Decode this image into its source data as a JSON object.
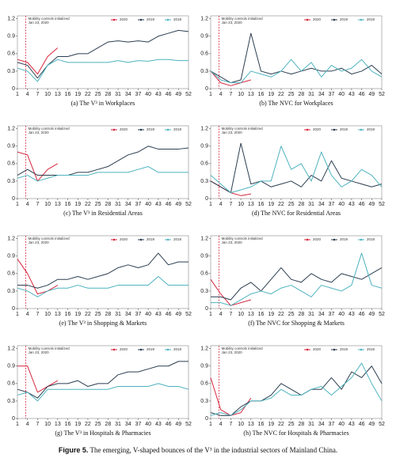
{
  "chart_data": [
    {
      "type": "line",
      "title": "(a) The V³ in Workplaces",
      "annotation": {
        "lines": [
          "Mobility controls initialized",
          "Jan 23, 2020"
        ],
        "x": 3.5
      },
      "x": [
        1,
        4,
        7,
        10,
        13,
        16,
        19,
        22,
        25,
        28,
        31,
        34,
        37,
        40,
        43,
        46,
        49,
        52
      ],
      "series": [
        {
          "name": "2020",
          "color": "#d7263d",
          "values": [
            0.5,
            0.45,
            0.25,
            0.55,
            0.7,
            null,
            null,
            null,
            null,
            null,
            null,
            null,
            null,
            null,
            null,
            null,
            null,
            null
          ]
        },
        {
          "name": "2019",
          "color": "#2c3e50",
          "values": [
            0.45,
            0.4,
            0.18,
            0.4,
            0.55,
            0.55,
            0.6,
            0.6,
            0.7,
            0.8,
            0.82,
            0.8,
            0.82,
            0.8,
            0.9,
            0.95,
            1.0,
            0.98
          ]
        },
        {
          "name": "2018",
          "color": "#4fb3bf",
          "values": [
            0.35,
            0.3,
            0.12,
            0.4,
            0.5,
            0.45,
            0.45,
            0.45,
            0.45,
            0.45,
            0.48,
            0.45,
            0.48,
            0.47,
            0.5,
            0.5,
            0.48,
            0.48
          ]
        }
      ],
      "xlim": [
        1,
        52
      ],
      "xticks": [
        1,
        4,
        7,
        10,
        13,
        16,
        19,
        22,
        25,
        28,
        31,
        34,
        37,
        40,
        43,
        46,
        49,
        52
      ],
      "ylim": [
        0,
        1.25
      ],
      "yticks": [
        0,
        0.3,
        0.6,
        0.9,
        1.2
      ]
    },
    {
      "type": "line",
      "title": "(b) The NVC for Workplaces",
      "annotation": {
        "lines": [
          "Mobility controls initialized",
          "Jan 23, 2020"
        ],
        "x": 3.5
      },
      "x": [
        1,
        4,
        7,
        10,
        13,
        16,
        19,
        22,
        25,
        28,
        31,
        34,
        37,
        40,
        43,
        46,
        49,
        52
      ],
      "series": [
        {
          "name": "2020",
          "color": "#d7263d",
          "values": [
            0.3,
            0.1,
            0.05,
            0.1,
            0.15,
            null,
            null,
            null,
            null,
            null,
            null,
            null,
            null,
            null,
            null,
            null,
            null,
            null
          ]
        },
        {
          "name": "2019",
          "color": "#2c3e50",
          "values": [
            0.3,
            0.2,
            0.1,
            0.15,
            0.95,
            0.3,
            0.25,
            0.3,
            0.25,
            0.3,
            0.35,
            0.3,
            0.3,
            0.35,
            0.25,
            0.3,
            0.4,
            0.25
          ]
        },
        {
          "name": "2018",
          "color": "#4fb3bf",
          "values": [
            0.3,
            0.15,
            0.1,
            0.1,
            0.3,
            0.25,
            0.2,
            0.3,
            0.5,
            0.3,
            0.45,
            0.2,
            0.4,
            0.3,
            0.35,
            0.5,
            0.3,
            0.2
          ]
        }
      ],
      "xlim": [
        1,
        52
      ],
      "xticks": [
        1,
        4,
        7,
        10,
        13,
        16,
        19,
        22,
        25,
        28,
        31,
        34,
        37,
        40,
        43,
        46,
        49,
        52
      ],
      "ylim": [
        0,
        1.25
      ],
      "yticks": [
        0,
        0.3,
        0.6,
        0.9,
        1.2
      ]
    },
    {
      "type": "line",
      "title": "(c) The V³ in Residential Areas",
      "annotation": {
        "lines": [
          "Mobility controls initialized",
          "Jan 23, 2020"
        ],
        "x": 3.5
      },
      "x": [
        1,
        4,
        7,
        10,
        13,
        16,
        19,
        22,
        25,
        28,
        31,
        34,
        37,
        40,
        43,
        46,
        49,
        52
      ],
      "series": [
        {
          "name": "2020",
          "color": "#d7263d",
          "values": [
            0.8,
            0.75,
            0.3,
            0.5,
            0.6,
            null,
            null,
            null,
            null,
            null,
            null,
            null,
            null,
            null,
            null,
            null,
            null,
            null
          ]
        },
        {
          "name": "2019",
          "color": "#2c3e50",
          "values": [
            0.4,
            0.5,
            0.4,
            0.4,
            0.4,
            0.4,
            0.45,
            0.45,
            0.5,
            0.55,
            0.65,
            0.75,
            0.8,
            0.9,
            0.85,
            0.85,
            0.85,
            0.87
          ]
        },
        {
          "name": "2018",
          "color": "#4fb3bf",
          "values": [
            0.35,
            0.4,
            0.3,
            0.35,
            0.4,
            0.4,
            0.4,
            0.4,
            0.45,
            0.45,
            0.45,
            0.45,
            0.5,
            0.55,
            0.45,
            0.45,
            0.45,
            0.45
          ]
        }
      ],
      "xlim": [
        1,
        52
      ],
      "xticks": [
        1,
        4,
        7,
        10,
        13,
        16,
        19,
        22,
        25,
        28,
        31,
        34,
        37,
        40,
        43,
        46,
        49,
        52
      ],
      "ylim": [
        0,
        1.25
      ],
      "yticks": [
        0,
        0.3,
        0.6,
        0.9,
        1.2
      ]
    },
    {
      "type": "line",
      "title": "(d) The NVC for Residential Areas",
      "annotation": {
        "lines": [
          "Mobility controls initialized",
          "Jan 23, 2020"
        ],
        "x": 3.5
      },
      "x": [
        1,
        4,
        7,
        10,
        13,
        16,
        19,
        22,
        25,
        28,
        31,
        34,
        37,
        40,
        43,
        46,
        49,
        52
      ],
      "series": [
        {
          "name": "2020",
          "color": "#d7263d",
          "values": [
            0.3,
            0.2,
            0.1,
            0.05,
            0.08,
            null,
            null,
            null,
            null,
            null,
            null,
            null,
            null,
            null,
            null,
            null,
            null,
            null
          ]
        },
        {
          "name": "2019",
          "color": "#2c3e50",
          "values": [
            0.3,
            0.2,
            0.1,
            0.95,
            0.25,
            0.3,
            0.2,
            0.25,
            0.3,
            0.2,
            0.4,
            0.3,
            0.65,
            0.35,
            0.3,
            0.25,
            0.2,
            0.25
          ]
        },
        {
          "name": "2018",
          "color": "#4fb3bf",
          "values": [
            0.4,
            0.25,
            0.1,
            0.15,
            0.2,
            0.3,
            0.3,
            0.9,
            0.5,
            0.6,
            0.3,
            0.8,
            0.4,
            0.2,
            0.3,
            0.5,
            0.4,
            0.2
          ]
        }
      ],
      "xlim": [
        1,
        52
      ],
      "xticks": [
        1,
        4,
        7,
        10,
        13,
        16,
        19,
        22,
        25,
        28,
        31,
        34,
        37,
        40,
        43,
        46,
        49,
        52
      ],
      "ylim": [
        0,
        1.25
      ],
      "yticks": [
        0,
        0.3,
        0.6,
        0.9,
        1.2
      ]
    },
    {
      "type": "line",
      "title": "(e) The V³ in Shopping & Markets",
      "annotation": {
        "lines": [
          "Mobility controls initialized",
          "Jan 23, 2020"
        ],
        "x": 3.5
      },
      "x": [
        1,
        4,
        7,
        10,
        13,
        16,
        19,
        22,
        25,
        28,
        31,
        34,
        37,
        40,
        43,
        46,
        49,
        52
      ],
      "series": [
        {
          "name": "2020",
          "color": "#d7263d",
          "values": [
            0.85,
            0.6,
            0.25,
            0.3,
            0.4,
            null,
            null,
            null,
            null,
            null,
            null,
            null,
            null,
            null,
            null,
            null,
            null,
            null
          ]
        },
        {
          "name": "2019",
          "color": "#2c3e50",
          "values": [
            0.4,
            0.4,
            0.35,
            0.4,
            0.5,
            0.5,
            0.55,
            0.5,
            0.55,
            0.6,
            0.7,
            0.75,
            0.7,
            0.75,
            0.95,
            0.75,
            0.8,
            0.8
          ]
        },
        {
          "name": "2018",
          "color": "#4fb3bf",
          "values": [
            0.35,
            0.3,
            0.2,
            0.3,
            0.35,
            0.35,
            0.4,
            0.35,
            0.35,
            0.35,
            0.4,
            0.4,
            0.4,
            0.4,
            0.55,
            0.4,
            0.4,
            0.4
          ]
        }
      ],
      "xlim": [
        1,
        52
      ],
      "xticks": [
        1,
        4,
        7,
        10,
        13,
        16,
        19,
        22,
        25,
        28,
        31,
        34,
        37,
        40,
        43,
        46,
        49,
        52
      ],
      "ylim": [
        0,
        1.25
      ],
      "yticks": [
        0,
        0.3,
        0.6,
        0.9,
        1.2
      ]
    },
    {
      "type": "line",
      "title": "(f) The NVC for Shopping & Markets",
      "annotation": {
        "lines": [
          "Mobility controls initialized",
          "Jan 23, 2020"
        ],
        "x": 3.5
      },
      "x": [
        1,
        4,
        7,
        10,
        13,
        16,
        19,
        22,
        25,
        28,
        31,
        34,
        37,
        40,
        43,
        46,
        49,
        52
      ],
      "series": [
        {
          "name": "2020",
          "color": "#d7263d",
          "values": [
            0.5,
            0.25,
            0.05,
            0.1,
            0.15,
            null,
            null,
            null,
            null,
            null,
            null,
            null,
            null,
            null,
            null,
            null,
            null,
            null
          ]
        },
        {
          "name": "2019",
          "color": "#2c3e50",
          "values": [
            0.2,
            0.2,
            0.15,
            0.35,
            0.45,
            0.3,
            0.5,
            0.7,
            0.5,
            0.45,
            0.6,
            0.5,
            0.45,
            0.6,
            0.55,
            0.5,
            0.6,
            0.7
          ]
        },
        {
          "name": "2018",
          "color": "#4fb3bf",
          "values": [
            0.1,
            0.1,
            0.05,
            0.15,
            0.25,
            0.3,
            0.25,
            0.35,
            0.4,
            0.3,
            0.2,
            0.4,
            0.35,
            0.3,
            0.4,
            0.95,
            0.4,
            0.35
          ]
        }
      ],
      "xlim": [
        1,
        52
      ],
      "xticks": [
        1,
        4,
        7,
        10,
        13,
        16,
        19,
        22,
        25,
        28,
        31,
        34,
        37,
        40,
        43,
        46,
        49,
        52
      ],
      "ylim": [
        0,
        1.25
      ],
      "yticks": [
        0,
        0.3,
        0.6,
        0.9,
        1.2
      ]
    },
    {
      "type": "line",
      "title": "(g) The V³ in Hospitals & Pharmacies",
      "annotation": {
        "lines": [
          "Mobility controls initialized",
          "Jan 23, 2020"
        ],
        "x": 3.5
      },
      "x": [
        1,
        4,
        7,
        10,
        13,
        16,
        19,
        22,
        25,
        28,
        31,
        34,
        37,
        40,
        43,
        46,
        49,
        52
      ],
      "series": [
        {
          "name": "2020",
          "color": "#d7263d",
          "values": [
            0.9,
            0.9,
            0.45,
            0.55,
            0.65,
            null,
            null,
            null,
            null,
            null,
            null,
            null,
            null,
            null,
            null,
            null,
            null,
            null
          ]
        },
        {
          "name": "2019",
          "color": "#2c3e50",
          "values": [
            0.5,
            0.45,
            0.35,
            0.55,
            0.6,
            0.6,
            0.65,
            0.55,
            0.6,
            0.6,
            0.75,
            0.8,
            0.8,
            0.85,
            0.9,
            0.9,
            0.98,
            0.98
          ]
        },
        {
          "name": "2018",
          "color": "#4fb3bf",
          "values": [
            0.4,
            0.45,
            0.3,
            0.5,
            0.5,
            0.5,
            0.5,
            0.5,
            0.5,
            0.5,
            0.55,
            0.55,
            0.55,
            0.55,
            0.6,
            0.55,
            0.55,
            0.5
          ]
        }
      ],
      "xlim": [
        1,
        52
      ],
      "xticks": [
        1,
        4,
        7,
        10,
        13,
        16,
        19,
        22,
        25,
        28,
        31,
        34,
        37,
        40,
        43,
        46,
        49,
        52
      ],
      "ylim": [
        0,
        1.25
      ],
      "yticks": [
        0,
        0.3,
        0.6,
        0.9,
        1.2
      ]
    },
    {
      "type": "line",
      "title": "(h) The NVC for Hospitals & Pharmacies",
      "annotation": {
        "lines": [
          "Mobility controls initialized",
          "Jan 23, 2020"
        ],
        "x": 3.5
      },
      "x": [
        1,
        4,
        7,
        10,
        13,
        16,
        19,
        22,
        25,
        28,
        31,
        34,
        37,
        40,
        43,
        46,
        49,
        52
      ],
      "series": [
        {
          "name": "2020",
          "color": "#d7263d",
          "values": [
            0.7,
            0.15,
            0.05,
            0.1,
            0.35,
            null,
            null,
            null,
            null,
            null,
            null,
            null,
            null,
            null,
            null,
            null,
            null,
            null
          ]
        },
        {
          "name": "2019",
          "color": "#2c3e50",
          "values": [
            0.1,
            0.05,
            0.05,
            0.2,
            0.3,
            0.3,
            0.4,
            0.6,
            0.5,
            0.4,
            0.5,
            0.5,
            0.7,
            0.5,
            0.8,
            0.7,
            0.9,
            0.6
          ]
        },
        {
          "name": "2018",
          "color": "#4fb3bf",
          "values": [
            0.05,
            0.1,
            0.05,
            0.15,
            0.3,
            0.3,
            0.35,
            0.5,
            0.4,
            0.4,
            0.5,
            0.55,
            0.4,
            0.55,
            0.7,
            0.95,
            0.6,
            0.3
          ]
        }
      ],
      "xlim": [
        1,
        52
      ],
      "xticks": [
        1,
        4,
        7,
        10,
        13,
        16,
        19,
        22,
        25,
        28,
        31,
        34,
        37,
        40,
        43,
        46,
        49,
        52
      ],
      "ylim": [
        0,
        1.25
      ],
      "yticks": [
        0,
        0.3,
        0.6,
        0.9,
        1.2
      ]
    }
  ],
  "figure_caption": {
    "label": "Figure 5.",
    "text": "The emerging, V-shaped bounces of the V³ in the industrial sectors of Mainland China."
  }
}
